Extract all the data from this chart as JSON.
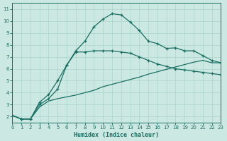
{
  "xlabel": "Humidex (Indice chaleur)",
  "bg_color": "#cce8e3",
  "grid_color": "#aad4cc",
  "line_color": "#1a6e62",
  "xlim": [
    0,
    23
  ],
  "ylim": [
    1.5,
    11.5
  ],
  "xticks": [
    0,
    1,
    2,
    3,
    4,
    5,
    6,
    7,
    8,
    9,
    10,
    11,
    12,
    13,
    14,
    15,
    16,
    17,
    18,
    19,
    20,
    21,
    22,
    23
  ],
  "yticks": [
    2,
    3,
    4,
    5,
    6,
    7,
    8,
    9,
    10,
    11
  ],
  "line1_x": [
    0,
    1,
    2,
    3,
    4,
    5,
    6,
    7,
    8,
    9,
    10,
    11,
    12,
    13,
    14,
    15,
    16,
    17,
    18,
    19,
    20,
    21,
    22,
    23
  ],
  "line1_y": [
    2.1,
    1.8,
    1.8,
    3.2,
    3.85,
    5.0,
    6.3,
    7.5,
    8.3,
    9.5,
    10.15,
    10.6,
    10.5,
    9.9,
    9.2,
    8.3,
    8.1,
    7.7,
    7.75,
    7.5,
    7.5,
    7.1,
    6.7,
    6.5
  ],
  "line2_x": [
    0,
    1,
    2,
    3,
    4,
    5,
    6,
    7,
    8,
    9,
    10,
    11,
    12,
    13,
    14,
    15,
    16,
    17,
    18,
    19,
    20,
    21,
    22,
    23
  ],
  "line2_y": [
    2.1,
    1.8,
    1.8,
    3.0,
    3.5,
    4.3,
    6.3,
    7.4,
    7.4,
    7.5,
    7.5,
    7.5,
    7.4,
    7.3,
    7.0,
    6.7,
    6.4,
    6.2,
    6.0,
    5.9,
    5.8,
    5.7,
    5.6,
    5.5
  ],
  "line3_x": [
    0,
    1,
    2,
    3,
    4,
    5,
    6,
    7,
    8,
    9,
    10,
    11,
    12,
    13,
    14,
    15,
    16,
    17,
    18,
    19,
    20,
    21,
    22,
    23
  ],
  "line3_y": [
    2.1,
    1.8,
    1.8,
    2.8,
    3.3,
    3.5,
    3.65,
    3.8,
    4.0,
    4.2,
    4.5,
    4.7,
    4.9,
    5.1,
    5.3,
    5.55,
    5.75,
    5.95,
    6.15,
    6.35,
    6.55,
    6.7,
    6.5,
    6.5
  ]
}
